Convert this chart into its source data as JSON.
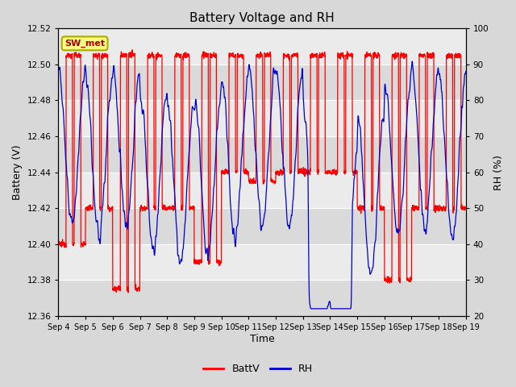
{
  "title": "Battery Voltage and RH",
  "xlabel": "Time",
  "ylabel_left": "Battery (V)",
  "ylabel_right": "RH (%)",
  "annotation": "SW_met",
  "ylim_left": [
    12.36,
    12.52
  ],
  "ylim_right": [
    20,
    100
  ],
  "yticks_left": [
    12.36,
    12.38,
    12.4,
    12.42,
    12.44,
    12.46,
    12.48,
    12.5,
    12.52
  ],
  "yticks_right": [
    20,
    30,
    40,
    50,
    60,
    70,
    80,
    90,
    100
  ],
  "xtick_labels": [
    "Sep 4",
    "Sep 5",
    "Sep 6",
    "Sep 7",
    "Sep 8",
    "Sep 9",
    "Sep 10",
    "Sep 11",
    "Sep 12",
    "Sep 13",
    "Sep 14",
    "Sep 15",
    "Sep 16",
    "Sep 17",
    "Sep 18",
    "Sep 19"
  ],
  "color_batt": "#FF0000",
  "color_rh": "#0000CC",
  "legend_labels": [
    "BattV",
    "RH"
  ],
  "bg_outer": "#D8D8D8",
  "plot_bg_light": "#E8E8E8",
  "plot_bg_dark": "#D0D0D0",
  "grid_color": "#FFFFFF",
  "annotation_bg": "#FFFF80",
  "annotation_border": "#AAAA00",
  "annotation_text_color": "#AA0000"
}
